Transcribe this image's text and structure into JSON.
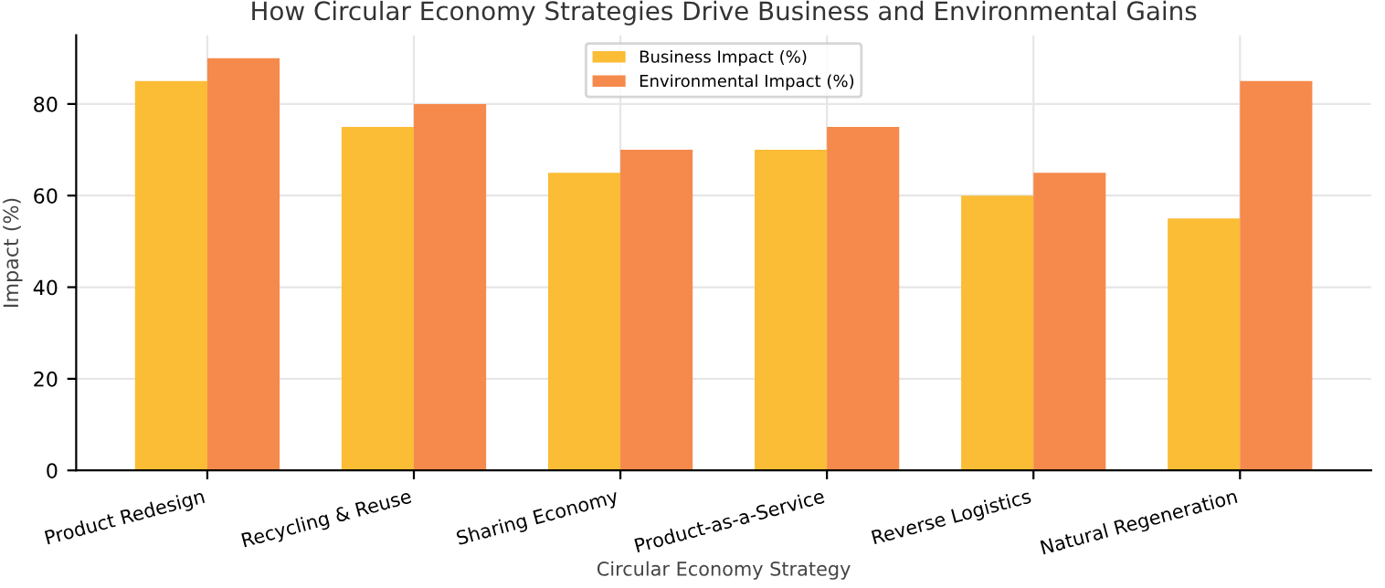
{
  "chart_data": {
    "type": "bar",
    "title": "How Circular Economy Strategies Drive Business and Environmental Gains",
    "xlabel": "Circular Economy Strategy",
    "ylabel": "Impact (%)",
    "categories": [
      "Product Redesign",
      "Recycling & Reuse",
      "Sharing Economy",
      "Product-as-a-Service",
      "Reverse Logistics",
      "Natural Regeneration"
    ],
    "series": [
      {
        "name": "Business Impact (%)",
        "color": "#fbbc36",
        "values": [
          85,
          75,
          65,
          70,
          60,
          55
        ]
      },
      {
        "name": "Environmental Impact (%)",
        "color": "#f58a4c",
        "values": [
          90,
          80,
          70,
          75,
          65,
          85
        ]
      }
    ],
    "ylim": [
      0,
      95
    ],
    "yticks": [
      0,
      20,
      40,
      60,
      80
    ],
    "grid": true,
    "legend": "top"
  }
}
